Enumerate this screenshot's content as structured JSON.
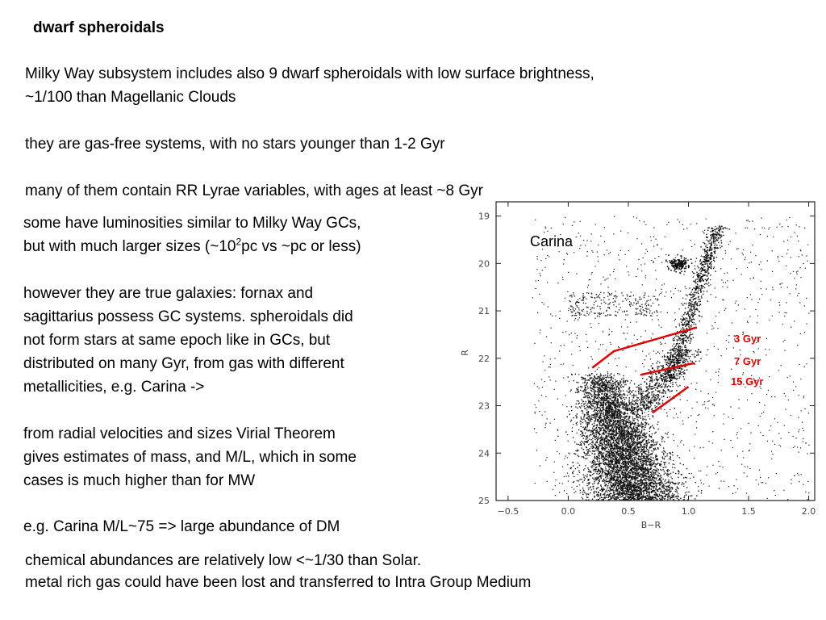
{
  "slide": {
    "title": "dwarf spheroidals",
    "intro": [
      "Milky Way subsystem includes also 9 dwarf spheroidals with low surface brightness,",
      "~1/100 than Magellanic Clouds"
    ],
    "gas_free": "they are gas-free systems, with no stars younger than 1-2 Gyr",
    "rr_lyrae": "many of them contain RR Lyrae variables, with ages at least ~8 Gyr",
    "luminosity": {
      "line1": "some have luminosities similar to Milky Way GCs,",
      "line2_pre": "but with much larger sizes (~10",
      "line2_sup": "2",
      "line2_post": "pc vs ~pc or less)"
    },
    "true_galaxies": [
      "however they are true galaxies: fornax and",
      "sagittarius possess GC systems. spheroidals did",
      "not form stars at same epoch like in GCs, but",
      "distributed on many Gyr, from gas with different",
      "metallicities, e.g. Carina ->"
    ],
    "virial": [
      "from radial velocities and sizes Virial Theorem",
      "gives estimates of mass, and M/L, which in some",
      "cases is much higher than for MW"
    ],
    "carina_ml": "e.g. Carina M/L~75 => large abundance of DM",
    "chemical": [
      "chemical abundances are relatively low <~1/30 than Solar.",
      "metal rich gas could have been lost and transferred to Intra Group Medium"
    ]
  },
  "chart_data": {
    "type": "scatter",
    "title": "Carina",
    "xlabel": "B−R",
    "ylabel": "R",
    "xlim": [
      -0.6,
      2.05
    ],
    "ylim": [
      25.0,
      18.7
    ],
    "y_inverted": true,
    "xticks": [
      "−0.5",
      "0.0",
      "0.5",
      "1.0",
      "1.5",
      "2.0"
    ],
    "xtick_values": [
      -0.5,
      0.0,
      0.5,
      1.0,
      1.5,
      2.0
    ],
    "yticks": [
      "19",
      "20",
      "21",
      "22",
      "23",
      "24",
      "25"
    ],
    "ytick_values": [
      19,
      20,
      21,
      22,
      23,
      24,
      25
    ],
    "features": {
      "main_sequence": "dense concentration of stars from B-R ~0.3-0.9, R ~22.3 to 25",
      "red_giant_branch": "narrow sequence from (0.8, 23) rising to (1.25, 19.2)",
      "red_clump": "compact clump near B-R 0.9, R 20.0",
      "horizontal_branch": "sparse band near R 20.5-21 across B-R 0.0-0.7"
    },
    "isochrones": [
      {
        "label": "3 Gyr",
        "color": "#e00000",
        "x": [
          0.2,
          0.38,
          1.07
        ],
        "y": [
          22.2,
          21.85,
          21.35
        ]
      },
      {
        "label": "7 Gyr",
        "color": "#e00000",
        "x": [
          0.6,
          1.05
        ],
        "y": [
          22.35,
          22.1
        ]
      },
      {
        "label": "15 Gyr",
        "color": "#e00000",
        "x": [
          0.7,
          1.0
        ],
        "y": [
          23.15,
          22.6
        ]
      }
    ]
  }
}
